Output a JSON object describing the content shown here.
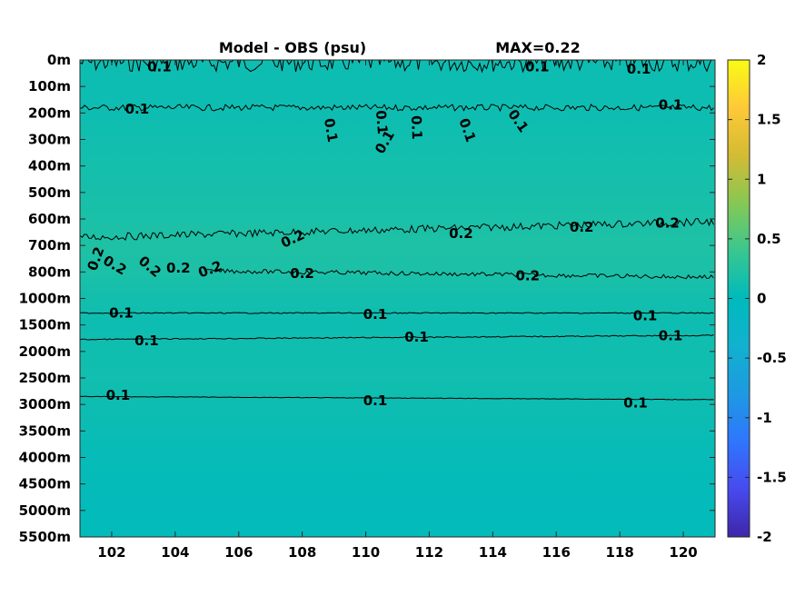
{
  "chart_data": {
    "type": "heatmap",
    "title": "Model - OBS (psu)",
    "subtitle": "MAX=0.22",
    "xlabel": "",
    "ylabel": "",
    "x_ticks": [
      "102",
      "104",
      "106",
      "108",
      "110",
      "112",
      "114",
      "116",
      "118",
      "120"
    ],
    "x_tick_values": [
      102,
      104,
      106,
      108,
      110,
      112,
      114,
      116,
      118,
      120
    ],
    "xlim": [
      101,
      121
    ],
    "y_ticks": [
      "0m",
      "100m",
      "200m",
      "300m",
      "400m",
      "500m",
      "600m",
      "700m",
      "800m",
      "1000m",
      "1500m",
      "2000m",
      "2500m",
      "3000m",
      "3500m",
      "4000m",
      "4500m",
      "5000m",
      "5500m"
    ],
    "colorbar": {
      "ticks": [
        "2",
        "1.5",
        "1",
        "0.5",
        "0",
        "-0.5",
        "-1",
        "-1.5",
        "-2"
      ],
      "tick_values": [
        2,
        1.5,
        1,
        0.5,
        0,
        -0.5,
        -1,
        -1.5,
        -2
      ],
      "clim": [
        -2,
        2
      ],
      "colormap": "parula"
    },
    "depth_profile": [
      {
        "depth": "0m",
        "value": 0.1
      },
      {
        "depth": "100m",
        "value": 0.09
      },
      {
        "depth": "200m",
        "value": 0.1
      },
      {
        "depth": "300m",
        "value": 0.12
      },
      {
        "depth": "400m",
        "value": 0.14
      },
      {
        "depth": "500m",
        "value": 0.16
      },
      {
        "depth": "600m",
        "value": 0.18
      },
      {
        "depth": "700m",
        "value": 0.21
      },
      {
        "depth": "800m",
        "value": 0.19
      },
      {
        "depth": "1000m",
        "value": 0.13
      },
      {
        "depth": "1500m",
        "value": 0.1
      },
      {
        "depth": "2000m",
        "value": 0.11
      },
      {
        "depth": "2500m",
        "value": 0.12
      },
      {
        "depth": "3000m",
        "value": 0.1
      },
      {
        "depth": "3500m",
        "value": 0.07
      },
      {
        "depth": "4000m",
        "value": 0.04
      },
      {
        "depth": "4500m",
        "value": 0.03
      },
      {
        "depth": "5000m",
        "value": 0.02
      },
      {
        "depth": "5500m",
        "value": 0.02
      }
    ],
    "contour_labels": [
      {
        "text": "0.1",
        "lon": 103.5,
        "depth_index": 0.25,
        "angle": 0
      },
      {
        "text": "0.1",
        "lon": 115.4,
        "depth_index": 0.25,
        "angle": 0
      },
      {
        "text": "0.1",
        "lon": 118.6,
        "depth_index": 0.35,
        "angle": 0
      },
      {
        "text": "0.1",
        "lon": 102.8,
        "depth_index": 1.85,
        "angle": 0
      },
      {
        "text": "0.1",
        "lon": 119.6,
        "depth_index": 1.7,
        "angle": 0
      },
      {
        "text": "0.1",
        "lon": 108.9,
        "depth_index": 2.65,
        "angle": 80
      },
      {
        "text": "0.1",
        "lon": 110.5,
        "depth_index": 2.35,
        "angle": 85
      },
      {
        "text": "0.1",
        "lon": 110.6,
        "depth_index": 3.1,
        "angle": -60
      },
      {
        "text": "0.1",
        "lon": 111.6,
        "depth_index": 2.55,
        "angle": 88
      },
      {
        "text": "0.1",
        "lon": 113.2,
        "depth_index": 2.65,
        "angle": 70
      },
      {
        "text": "0.1",
        "lon": 114.8,
        "depth_index": 2.3,
        "angle": 55
      },
      {
        "text": "0.2",
        "lon": 107.7,
        "depth_index": 6.75,
        "angle": -25
      },
      {
        "text": "0.2",
        "lon": 113.0,
        "depth_index": 6.55,
        "angle": 0
      },
      {
        "text": "0.2",
        "lon": 116.8,
        "depth_index": 6.3,
        "angle": 0
      },
      {
        "text": "0.2",
        "lon": 119.5,
        "depth_index": 6.15,
        "angle": 0
      },
      {
        "text": "0.2",
        "lon": 101.5,
        "depth_index": 7.5,
        "angle": -70
      },
      {
        "text": "0.2",
        "lon": 102.1,
        "depth_index": 7.75,
        "angle": 30
      },
      {
        "text": "0.2",
        "lon": 103.2,
        "depth_index": 7.8,
        "angle": 40
      },
      {
        "text": "0.2",
        "lon": 104.1,
        "depth_index": 7.85,
        "angle": 0
      },
      {
        "text": "0.2",
        "lon": 105.1,
        "depth_index": 7.9,
        "angle": -20
      },
      {
        "text": "0.2",
        "lon": 108.0,
        "depth_index": 8.05,
        "angle": 0
      },
      {
        "text": "0.2",
        "lon": 115.1,
        "depth_index": 8.15,
        "angle": 0
      },
      {
        "text": "0.1",
        "lon": 102.3,
        "depth_index": 9.55,
        "angle": 0
      },
      {
        "text": "0.1",
        "lon": 110.3,
        "depth_index": 9.6,
        "angle": 0
      },
      {
        "text": "0.1",
        "lon": 118.8,
        "depth_index": 9.65,
        "angle": 0
      },
      {
        "text": "0.1",
        "lon": 103.1,
        "depth_index": 10.6,
        "angle": 0
      },
      {
        "text": "0.1",
        "lon": 111.6,
        "depth_index": 10.45,
        "angle": 0
      },
      {
        "text": "0.1",
        "lon": 119.6,
        "depth_index": 10.4,
        "angle": 0
      },
      {
        "text": "0.1",
        "lon": 102.2,
        "depth_index": 12.65,
        "angle": 0
      },
      {
        "text": "0.1",
        "lon": 110.3,
        "depth_index": 12.85,
        "angle": 0
      },
      {
        "text": "0.1",
        "lon": 118.5,
        "depth_index": 12.95,
        "angle": 0
      }
    ],
    "contour_lines": [
      {
        "level": 0.1,
        "depth_index": 0.1,
        "jitter": 0.35,
        "lon_start": 101,
        "lon_end": 121
      },
      {
        "level": 0.1,
        "depth_index": 1.8,
        "jitter": 0.12,
        "lon_start": 101,
        "lon_end": 121
      },
      {
        "level": 0.2,
        "depth_index": 6.7,
        "jitter": 0.14,
        "lon_start": 101,
        "lon_end": 121,
        "slope": -0.03
      },
      {
        "level": 0.2,
        "depth_index": 7.9,
        "jitter": 0.08,
        "lon_start": 105,
        "lon_end": 121,
        "slope": 0.015
      },
      {
        "level": 0.1,
        "depth_index": 9.55,
        "jitter": 0.02,
        "lon_start": 101,
        "lon_end": 121
      },
      {
        "level": 0.1,
        "depth_index": 10.55,
        "jitter": 0.02,
        "lon_start": 101,
        "lon_end": 121,
        "slope": -0.008
      },
      {
        "level": 0.1,
        "depth_index": 12.7,
        "jitter": 0.01,
        "lon_start": 101,
        "lon_end": 121,
        "slope": 0.006
      }
    ],
    "grid": false,
    "legend": "colorbar-right"
  }
}
